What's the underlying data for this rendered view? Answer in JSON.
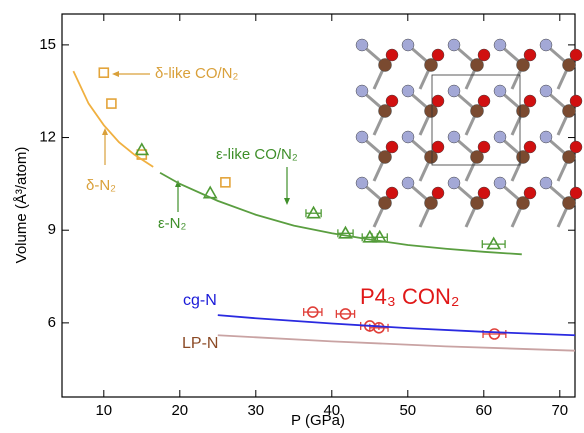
{
  "chart_data": {
    "type": "scatter",
    "x_label": "P (GPa)",
    "y_label": "Volume (Å³/atom)",
    "xlim": [
      4.5,
      72
    ],
    "ylim": [
      3.6,
      16
    ],
    "xticks": [
      10,
      20,
      30,
      40,
      50,
      60,
      70
    ],
    "yticks": [
      6,
      9,
      12,
      15
    ],
    "series": [
      {
        "marker": "square",
        "color": "#e3a43a",
        "x": [
          10,
          11,
          15,
          26
        ],
        "values": [
          14.1,
          13.1,
          11.45,
          10.55
        ]
      },
      {
        "marker": "triangle",
        "color": "#4f9a35",
        "x": [
          15,
          24,
          37.6,
          41.8,
          45,
          46.3,
          61.3
        ],
        "values": [
          11.6,
          10.2,
          9.55,
          8.9,
          8.77,
          8.77,
          8.55
        ],
        "xerr": [
          null,
          null,
          1,
          1,
          1,
          1,
          1.5
        ]
      },
      {
        "marker": "circle",
        "color": "#e0403a",
        "x": [
          37.5,
          41.8,
          45,
          46.2,
          61.4
        ],
        "values": [
          6.35,
          6.29,
          5.9,
          5.84,
          5.64
        ],
        "xerr": [
          1.2,
          1.2,
          1.2,
          1.2,
          1.5
        ]
      },
      {
        "marker": "line",
        "color": "#f0b040",
        "x": [
          6,
          8,
          10,
          12,
          14,
          16.5
        ],
        "values": [
          14.15,
          13.1,
          12.4,
          11.85,
          11.45,
          11.05
        ]
      },
      {
        "marker": "line",
        "color": "#5a9e40",
        "x": [
          17.4,
          20,
          25,
          30,
          35,
          40,
          45,
          50,
          55,
          60,
          65
        ],
        "values": [
          10.86,
          10.5,
          9.95,
          9.5,
          9.15,
          8.9,
          8.7,
          8.52,
          8.4,
          8.3,
          8.22
        ]
      },
      {
        "marker": "line",
        "color": "#2a2ae0",
        "x": [
          25,
          30,
          40,
          50,
          60,
          72
        ],
        "values": [
          6.25,
          6.15,
          5.98,
          5.83,
          5.71,
          5.6
        ]
      },
      {
        "marker": "line",
        "color": "#c9a3a3",
        "x": [
          25,
          40,
          55,
          72
        ],
        "values": [
          5.6,
          5.4,
          5.24,
          5.1
        ]
      }
    ],
    "annotations": [
      {
        "text": "δ-like CO/N₂",
        "color": "#d9a03a"
      },
      {
        "text": "δ-N₂",
        "color": "#d9a03a"
      },
      {
        "text": "ε-like CO/N₂",
        "color": "#3f8f2a"
      },
      {
        "text": "ε-N₂",
        "color": "#3f8f2a"
      },
      {
        "text": "cg-N",
        "color": "#1a1ad8"
      },
      {
        "text": "P4₃ CON₂",
        "color": "#e01818"
      },
      {
        "text": "LP-N",
        "color": "#8b4a25"
      }
    ]
  }
}
